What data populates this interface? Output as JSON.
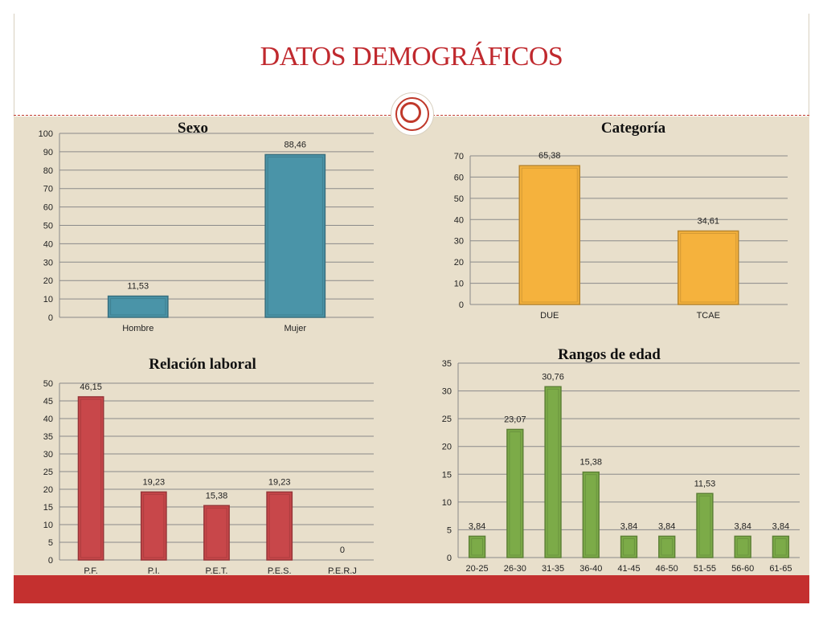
{
  "page": {
    "title": "DATOS DEMOGRÁFICOS"
  },
  "chart_data": [
    {
      "type": "bar",
      "title": "Sexo",
      "categories": [
        "Hombre",
        "Mujer"
      ],
      "values": [
        11.53,
        88.46
      ],
      "value_labels": [
        "11,53",
        "88,46"
      ],
      "ylim": [
        0,
        100
      ],
      "yticks": [
        0,
        10,
        20,
        30,
        40,
        50,
        60,
        70,
        80,
        90,
        100
      ],
      "color": "#4a94a8",
      "grid": true
    },
    {
      "type": "bar",
      "title": "Categoría",
      "categories": [
        "DUE",
        "TCAE"
      ],
      "values": [
        65.38,
        34.61
      ],
      "value_labels": [
        "65,38",
        "34,61"
      ],
      "ylim": [
        0,
        70
      ],
      "yticks": [
        0,
        10,
        20,
        30,
        40,
        50,
        60,
        70
      ],
      "color": "#f5b23d",
      "grid": true
    },
    {
      "type": "bar",
      "title": "Relación laboral",
      "categories": [
        "P.F.",
        "P.I.",
        "P.E.T.",
        "P.E.S.",
        "P.E.R.J"
      ],
      "values": [
        46.15,
        19.23,
        15.38,
        19.23,
        0
      ],
      "value_labels": [
        "46,15",
        "19,23",
        "15,38",
        "19,23",
        "0"
      ],
      "ylim": [
        0,
        50
      ],
      "yticks": [
        0,
        5,
        10,
        15,
        20,
        25,
        30,
        35,
        40,
        45,
        50
      ],
      "color": "#c8474a",
      "grid": true
    },
    {
      "type": "bar",
      "title": "Rangos de edad",
      "categories": [
        "20-25",
        "26-30",
        "31-35",
        "36-40",
        "41-45",
        "46-50",
        "51-55",
        "56-60",
        "61-65"
      ],
      "values": [
        3.84,
        23.07,
        30.76,
        15.38,
        3.84,
        3.84,
        11.53,
        3.84,
        3.84
      ],
      "value_labels": [
        "3,84",
        "23,07",
        "30,76",
        "15,38",
        "3,84",
        "3,84",
        "11,53",
        "3,84",
        "3,84"
      ],
      "ylim": [
        0,
        35
      ],
      "yticks": [
        0,
        5,
        10,
        15,
        20,
        25,
        30,
        35
      ],
      "color": "#7cab48",
      "grid": true
    }
  ]
}
